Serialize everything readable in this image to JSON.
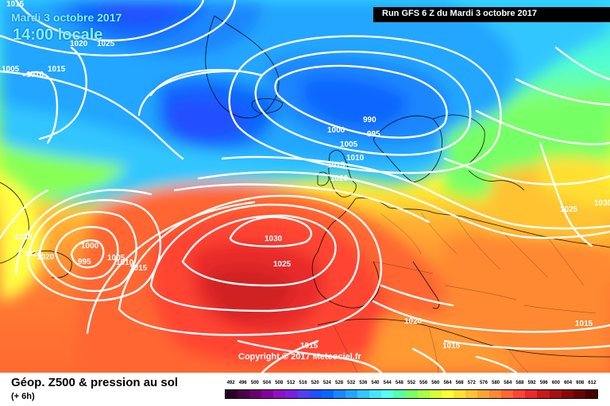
{
  "map": {
    "title_date": "Mardi 3 octobre 2017",
    "title_time": "14:00 locale",
    "run_label": "Run GFS 6 Z du Mardi 3 octobre 2017",
    "copyright": "Copyright © 2017 Meteociel.fr",
    "description": "Géop. Z500 & pression au sol",
    "step": "(+ 6h)",
    "isobar_labels": [
      "1015",
      "1020",
      "1025",
      "1005",
      "1010",
      "1015",
      "990",
      "995",
      "1000",
      "1005",
      "1010",
      "1015",
      "1020",
      "1030",
      "1025",
      "1030",
      "1025",
      "1020",
      "1000",
      "995",
      "1005",
      "1010",
      "1015",
      "1020",
      "1015",
      "1015",
      "1025",
      "1030",
      "1015"
    ]
  },
  "legend": {
    "scale": [
      "492",
      "496",
      "500",
      "504",
      "508",
      "512",
      "516",
      "520",
      "524",
      "528",
      "532",
      "536",
      "540",
      "544",
      "548",
      "552",
      "556",
      "560",
      "564",
      "568",
      "572",
      "576",
      "580",
      "584",
      "588",
      "592",
      "596",
      "600",
      "604",
      "608",
      "612"
    ],
    "colors": [
      "#2a0026",
      "#4b0048",
      "#6a0070",
      "#86009a",
      "#8f10c0",
      "#7a20e0",
      "#5040f0",
      "#2050ff",
      "#0a66ff",
      "#1a86ff",
      "#22a6ff",
      "#33c6ff",
      "#44e6ff",
      "#55ffee",
      "#55ffaa",
      "#77ff66",
      "#a8ff44",
      "#d6ff33",
      "#ffff33",
      "#ffe033",
      "#ffc333",
      "#ffa533",
      "#ff8833",
      "#ff6633",
      "#ff4433",
      "#e82a2a",
      "#c81a1a",
      "#a81010",
      "#880808",
      "#680404",
      "#480000"
    ]
  }
}
